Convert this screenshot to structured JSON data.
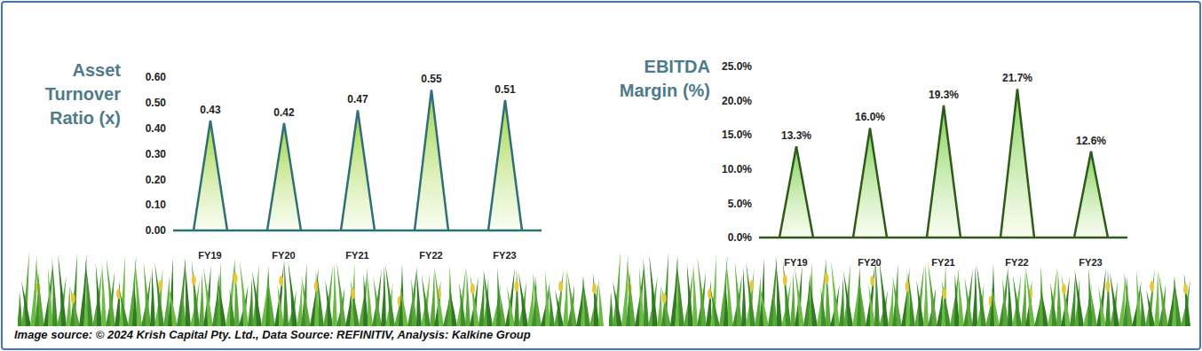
{
  "chart_data": [
    {
      "type": "bar",
      "title": "Asset Turnover Ratio (x)",
      "categories": [
        "FY19",
        "FY20",
        "FY21",
        "FY22",
        "FY23"
      ],
      "values": [
        0.43,
        0.42,
        0.47,
        0.55,
        0.51
      ],
      "color": "#2f6f79",
      "ylim": [
        0,
        0.6
      ],
      "yticks": [
        {
          "value": 0,
          "label": "0.00"
        },
        {
          "value": 0.1,
          "label": "0.10"
        },
        {
          "value": 0.2,
          "label": "0.20"
        },
        {
          "value": 0.3,
          "label": "0.30"
        },
        {
          "value": 0.4,
          "label": "0.40"
        },
        {
          "value": 0.5,
          "label": "0.50"
        },
        {
          "value": 0.6,
          "label": "0.60"
        }
      ],
      "data_labels": true
    },
    {
      "type": "bar",
      "title": "EBITDA Margin (%)",
      "categories": [
        "FY19",
        "FY20",
        "FY21",
        "FY22",
        "FY23"
      ],
      "values": [
        13.3,
        16.0,
        19.3,
        21.7,
        12.6
      ],
      "value_labels": [
        "13.3%",
        "16.0%",
        "19.3%",
        "21.7%",
        "12.6%"
      ],
      "color": "#2e5a1c",
      "ylim": [
        0,
        25
      ],
      "yticks": [
        {
          "value": 0,
          "label": "0.0%"
        },
        {
          "value": 5,
          "label": "5.0%"
        },
        {
          "value": 10,
          "label": "10.0%"
        },
        {
          "value": 15,
          "label": "15.0%"
        },
        {
          "value": 20,
          "label": "20.0%"
        },
        {
          "value": 25,
          "label": "25.0%"
        }
      ],
      "data_labels": true
    }
  ],
  "footer": "Image source: © 2024 Krish Capital Pty. Ltd., Data Source: REFINITIV, Analysis: Kalkine Group"
}
